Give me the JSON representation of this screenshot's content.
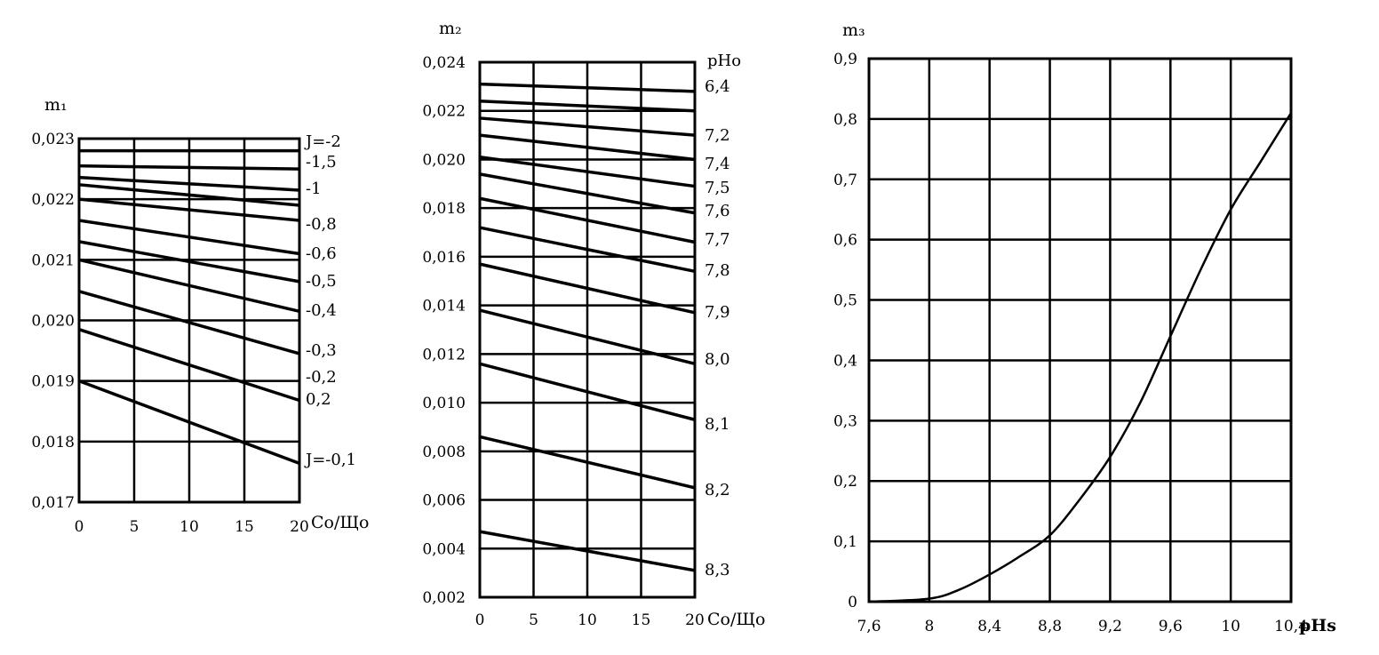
{
  "chart_data": [
    {
      "type": "line",
      "ylabel": "m₁",
      "xlabel": "Cо/Що",
      "xlim": [
        0,
        20
      ],
      "ylim": [
        0.017,
        0.023
      ],
      "x_ticks": [
        "0",
        "5",
        "10",
        "15",
        "20"
      ],
      "y_ticks": [
        "0,017",
        "0,018",
        "0,019",
        "0,020",
        "0,021",
        "0,022",
        "0,023"
      ],
      "x": [
        0,
        20
      ],
      "series": [
        {
          "name": "J=-2",
          "values": [
            0.0228,
            0.0228
          ]
        },
        {
          "name": "-1,5",
          "values": [
            0.02255,
            0.0225
          ]
        },
        {
          "name": "-1",
          "values": [
            0.02236,
            0.02215
          ]
        },
        {
          "name": "-0,8",
          "values": [
            0.02224,
            0.0219
          ]
        },
        {
          "name": "-0,6",
          "values": [
            0.022,
            0.02165
          ]
        },
        {
          "name": "-0,5",
          "values": [
            0.02165,
            0.0211
          ]
        },
        {
          "name": "-0,4",
          "values": [
            0.0213,
            0.02064
          ]
        },
        {
          "name": "-0,3",
          "values": [
            0.021,
            0.02015
          ]
        },
        {
          "name": "-0,2",
          "values": [
            0.02048,
            0.01945
          ]
        },
        {
          "name": "0,2",
          "values": [
            0.01985,
            0.01868
          ]
        },
        {
          "name": "J=-0,1",
          "values": [
            0.019,
            0.01764
          ]
        }
      ]
    },
    {
      "type": "line",
      "ylabel": "m₂",
      "xlabel": "Cо/Що",
      "series_title": "pHо",
      "xlim": [
        0,
        20
      ],
      "ylim": [
        0.002,
        0.024
      ],
      "x_ticks": [
        "0",
        "5",
        "10",
        "15",
        "20"
      ],
      "y_ticks": [
        "0,002",
        "0,004",
        "0,006",
        "0,008",
        "0,010",
        "0,012",
        "0,014",
        "0,016",
        "0,018",
        "0,020",
        "0,022",
        "0,024"
      ],
      "x": [
        0,
        20
      ],
      "series": [
        {
          "name": "6,4",
          "values": [
            0.0231,
            0.0228
          ]
        },
        {
          "name": "",
          "values": [
            0.0224,
            0.022
          ]
        },
        {
          "name": "7,2",
          "values": [
            0.0217,
            0.021
          ]
        },
        {
          "name": "7,4",
          "values": [
            0.021,
            0.02
          ]
        },
        {
          "name": "7,5",
          "values": [
            0.0201,
            0.0189
          ]
        },
        {
          "name": "7,6",
          "values": [
            0.0194,
            0.0178
          ]
        },
        {
          "name": "7,7",
          "values": [
            0.0184,
            0.0166
          ]
        },
        {
          "name": "7,8",
          "values": [
            0.0172,
            0.0154
          ]
        },
        {
          "name": "7,9",
          "values": [
            0.0157,
            0.0137
          ]
        },
        {
          "name": "8,0",
          "values": [
            0.0138,
            0.0116
          ]
        },
        {
          "name": "8,1",
          "values": [
            0.0116,
            0.0093
          ]
        },
        {
          "name": "8,2",
          "values": [
            0.0086,
            0.0065
          ]
        },
        {
          "name": "8,3",
          "values": [
            0.0047,
            0.0031
          ]
        }
      ]
    },
    {
      "type": "line",
      "ylabel": "m₃",
      "xlabel": "pHs",
      "xlim": [
        7.6,
        10.4
      ],
      "ylim": [
        0,
        0.9
      ],
      "x_ticks": [
        "7,6",
        "8",
        "8,4",
        "8,8",
        "9,2",
        "9,6",
        "10",
        "10,4"
      ],
      "y_ticks": [
        "0",
        "0,1",
        "0,2",
        "0,3",
        "0,4",
        "0,5",
        "0,6",
        "0,7",
        "0,8",
        "0,9"
      ],
      "x": [
        7.6,
        8.0,
        8.2,
        8.4,
        8.6,
        8.8,
        9.0,
        9.2,
        9.4,
        9.6,
        9.8,
        10.0,
        10.2,
        10.4
      ],
      "series": [
        {
          "name": "",
          "values": [
            0.0,
            0.005,
            0.02,
            0.045,
            0.075,
            0.11,
            0.17,
            0.24,
            0.33,
            0.44,
            0.55,
            0.65,
            0.73,
            0.81
          ]
        }
      ]
    }
  ]
}
